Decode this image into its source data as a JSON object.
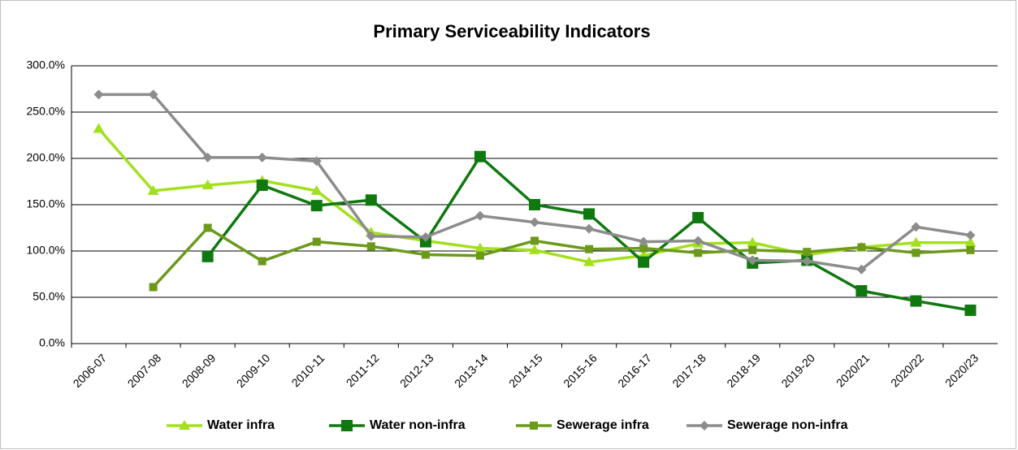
{
  "chart_data": {
    "type": "line",
    "title": "Primary Serviceability Indicators",
    "categories": [
      "2006-07",
      "2007-08",
      "2008-09",
      "2009-10",
      "2010-11",
      "2011-12",
      "2012-13",
      "2013-14",
      "2014-15",
      "2015-16",
      "2016-17",
      "2017-18",
      "2018-19",
      "2019-20",
      "2020/21",
      "2020/22",
      "2020/23"
    ],
    "series": [
      {
        "name": "Water infra",
        "color": "#a2e01e",
        "marker": "triangle",
        "values": [
          232,
          165,
          171,
          176,
          165,
          120,
          111,
          103,
          101,
          88,
          95,
          108,
          109,
          96,
          104,
          109,
          109
        ]
      },
      {
        "name": "Water non-infra",
        "color": "#0f780f",
        "marker": "square",
        "values": [
          null,
          null,
          94,
          171,
          149,
          155,
          110,
          202,
          150,
          140,
          88,
          136,
          87,
          90,
          57,
          46,
          36
        ]
      },
      {
        "name": "Sewerage infra",
        "color": "#6b9a1b",
        "marker": "small-square",
        "values": [
          null,
          61,
          125,
          89,
          110,
          105,
          96,
          95,
          111,
          102,
          103,
          98,
          101,
          99,
          104,
          98,
          101
        ]
      },
      {
        "name": "Sewerage non-infra",
        "color": "#8c8c8c",
        "marker": "diamond",
        "values": [
          269,
          269,
          201,
          201,
          197,
          116,
          115,
          138,
          131,
          124,
          110,
          111,
          90,
          89,
          80,
          126,
          117
        ]
      }
    ],
    "ylim": [
      0,
      300
    ],
    "yticks": [
      {
        "value": 0,
        "label": "0.0%"
      },
      {
        "value": 50,
        "label": "50.0%"
      },
      {
        "value": 100,
        "label": "100.0%"
      },
      {
        "value": 150,
        "label": "150.0%"
      },
      {
        "value": 200,
        "label": "200.0%"
      },
      {
        "value": 250,
        "label": "250.0%"
      },
      {
        "value": 300,
        "label": "300.0%"
      }
    ],
    "grid": true,
    "legend": "bottom"
  }
}
